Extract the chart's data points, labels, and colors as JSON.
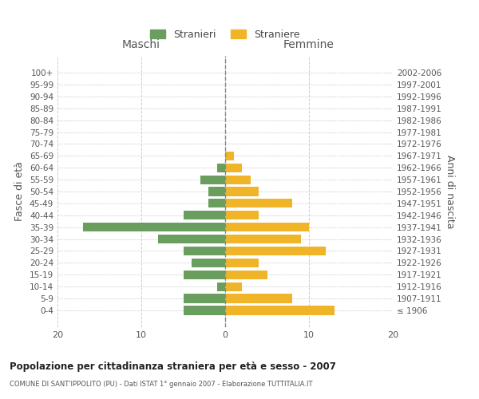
{
  "age_groups": [
    "100+",
    "95-99",
    "90-94",
    "85-89",
    "80-84",
    "75-79",
    "70-74",
    "65-69",
    "60-64",
    "55-59",
    "50-54",
    "45-49",
    "40-44",
    "35-39",
    "30-34",
    "25-29",
    "20-24",
    "15-19",
    "10-14",
    "5-9",
    "0-4"
  ],
  "birth_years": [
    "≤ 1906",
    "1907-1911",
    "1912-1916",
    "1917-1921",
    "1922-1926",
    "1927-1931",
    "1932-1936",
    "1937-1941",
    "1942-1946",
    "1947-1951",
    "1952-1956",
    "1957-1961",
    "1962-1966",
    "1967-1971",
    "1972-1976",
    "1977-1981",
    "1982-1986",
    "1987-1991",
    "1992-1996",
    "1997-2001",
    "2002-2006"
  ],
  "males": [
    0,
    0,
    0,
    0,
    0,
    0,
    0,
    0,
    1,
    3,
    2,
    2,
    5,
    17,
    8,
    5,
    4,
    5,
    1,
    5,
    5
  ],
  "females": [
    0,
    0,
    0,
    0,
    0,
    0,
    0,
    1,
    2,
    3,
    4,
    8,
    4,
    10,
    9,
    12,
    4,
    5,
    2,
    8,
    13
  ],
  "male_color": "#6a9e5e",
  "female_color": "#f0b429",
  "background_color": "#ffffff",
  "grid_color": "#cccccc",
  "title": "Popolazione per cittadinanza straniera per età e sesso - 2007",
  "subtitle": "COMUNE DI SANT'IPPOLITO (PU) - Dati ISTAT 1° gennaio 2007 - Elaborazione TUTTITALIA.IT",
  "xlabel_left": "Maschi",
  "xlabel_right": "Femmine",
  "ylabel_left": "Fasce di età",
  "ylabel_right": "Anni di nascita",
  "xlim": 20,
  "legend_labels": [
    "Stranieri",
    "Straniere"
  ]
}
